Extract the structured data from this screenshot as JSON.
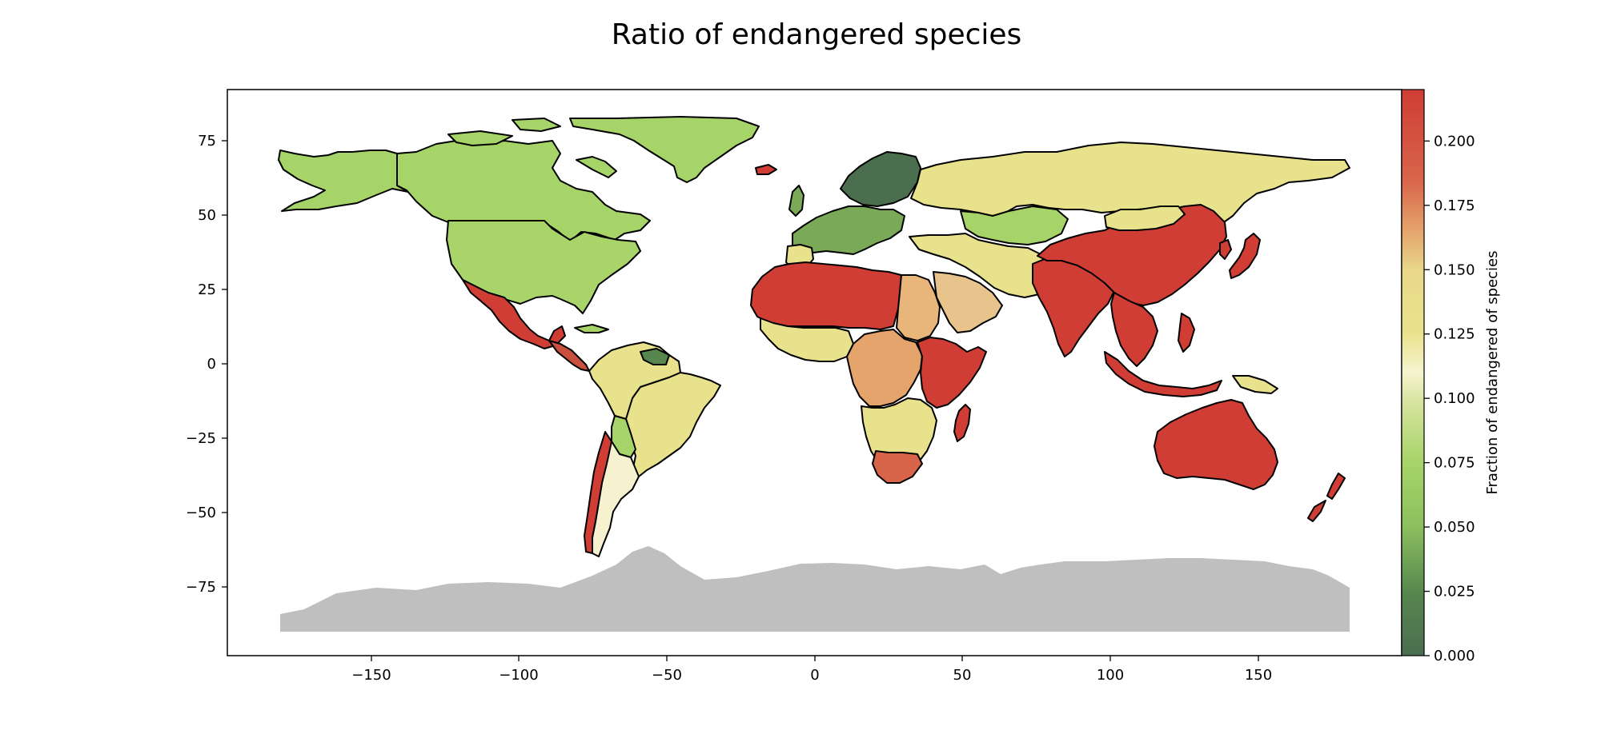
{
  "title": "Ratio of endangered species",
  "colorbar": {
    "label": "Fraction of endangered of species",
    "ticks": [
      "0.000",
      "0.025",
      "0.050",
      "0.075",
      "0.100",
      "0.125",
      "0.150",
      "0.175",
      "0.200"
    ],
    "range": [
      0,
      0.22
    ],
    "colors": [
      "#4b6e4f",
      "#a6d468",
      "#f6f4d0",
      "#e9e28d",
      "#cf3d35"
    ]
  },
  "axes": {
    "x_ticks": [
      "−150",
      "−100",
      "−50",
      "0",
      "50",
      "100",
      "150"
    ],
    "x_values": [
      -150,
      -100,
      -50,
      0,
      50,
      100,
      150
    ],
    "y_ticks": [
      "75",
      "50",
      "25",
      "0",
      "−25",
      "−50",
      "−75"
    ],
    "y_values": [
      75,
      50,
      25,
      0,
      -25,
      -50,
      -75
    ],
    "xlim": [
      -198,
      198
    ],
    "ylim": [
      -98,
      92
    ]
  },
  "chart_data": {
    "type": "choropleth",
    "title": "Ratio of endangered species",
    "value_label": "Fraction of endangered of species",
    "value_range": [
      0,
      0.22
    ],
    "no_data_color": "#bfbfbf",
    "regions": [
      {
        "region": "Alaska",
        "value": 0.08
      },
      {
        "region": "Canada",
        "value": 0.08
      },
      {
        "region": "United States",
        "value": 0.08
      },
      {
        "region": "Greenland",
        "value": 0.08
      },
      {
        "region": "Mexico",
        "value": 0.21
      },
      {
        "region": "Central America",
        "value": 0.21
      },
      {
        "region": "South America (north)",
        "value": 0.12
      },
      {
        "region": "Brazil",
        "value": 0.12
      },
      {
        "region": "Argentina",
        "value": 0.11
      },
      {
        "region": "Chile",
        "value": 0.21
      },
      {
        "region": "Northern Europe",
        "value": 0.01
      },
      {
        "region": "Western Europe",
        "value": 0.06
      },
      {
        "region": "Russia",
        "value": 0.12
      },
      {
        "region": "Kazakhstan",
        "value": 0.07
      },
      {
        "region": "Middle East",
        "value": 0.12
      },
      {
        "region": "North Africa",
        "value": 0.21
      },
      {
        "region": "East Africa",
        "value": 0.16
      },
      {
        "region": "Southern Africa",
        "value": 0.13
      },
      {
        "region": "Madagascar",
        "value": 0.21
      },
      {
        "region": "China",
        "value": 0.21
      },
      {
        "region": "India",
        "value": 0.21
      },
      {
        "region": "Southeast Asia",
        "value": 0.21
      },
      {
        "region": "Japan",
        "value": 0.21
      },
      {
        "region": "Australia",
        "value": 0.21
      },
      {
        "region": "New Zealand",
        "value": 0.21
      },
      {
        "region": "Antarctica",
        "value": null
      }
    ]
  }
}
